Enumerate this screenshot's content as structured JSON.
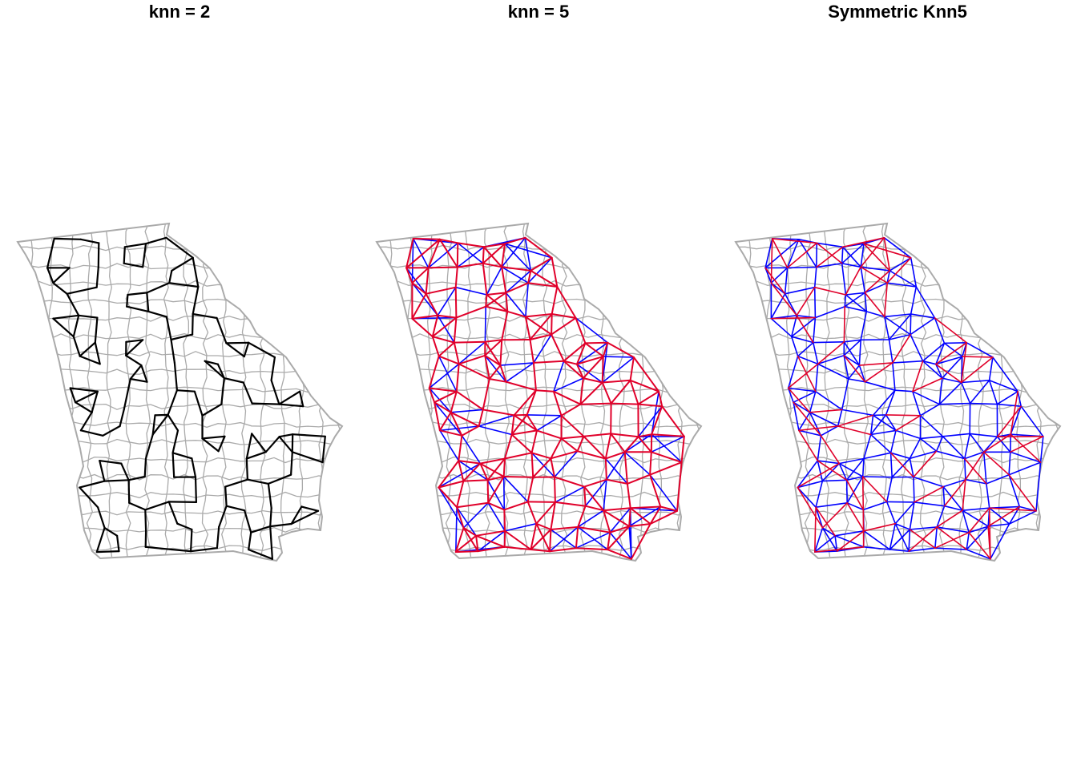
{
  "figure": {
    "panels": [
      {
        "title": "knn = 2",
        "edge_colors": [
          "#000000"
        ]
      },
      {
        "title": "knn = 5",
        "edge_colors": [
          "#0000ff",
          "#e0002a"
        ]
      },
      {
        "title": "Symmetric Knn5",
        "edge_colors": [
          "#0000ff",
          "#e0002a"
        ]
      }
    ],
    "boundary_color": "#aaaaaa"
  }
}
